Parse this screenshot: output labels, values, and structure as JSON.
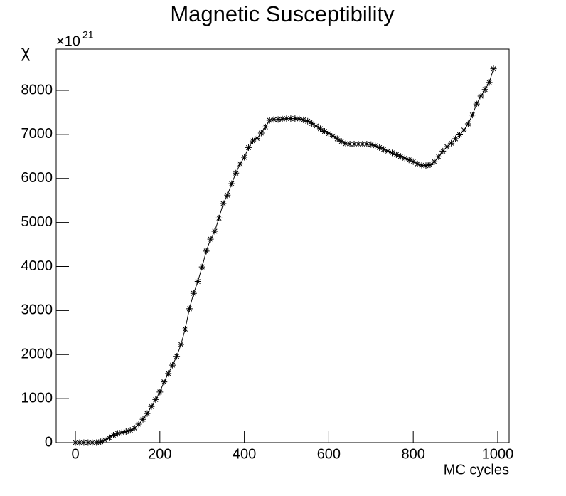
{
  "chart_data": {
    "type": "scatter-line",
    "title": "Magnetic Susceptibility",
    "x_label": "MC cycles",
    "y_label": "χ",
    "y_multiplier": "×10",
    "y_multiplier_exponent": "21",
    "color": "#000000",
    "x": [
      0,
      10,
      20,
      30,
      40,
      50,
      60,
      70,
      80,
      90,
      100,
      110,
      120,
      130,
      140,
      150,
      160,
      170,
      180,
      190,
      200,
      210,
      220,
      230,
      240,
      250,
      260,
      270,
      280,
      290,
      300,
      310,
      320,
      330,
      340,
      350,
      360,
      370,
      380,
      390,
      400,
      410,
      420,
      430,
      440,
      450,
      460,
      470,
      480,
      490,
      500,
      510,
      520,
      530,
      540,
      550,
      560,
      570,
      580,
      590,
      600,
      610,
      620,
      630,
      640,
      650,
      660,
      670,
      680,
      690,
      700,
      710,
      720,
      730,
      740,
      750,
      760,
      770,
      780,
      790,
      800,
      810,
      820,
      830,
      840,
      850,
      860,
      870,
      880,
      890,
      900,
      910,
      920,
      930,
      940,
      950,
      960,
      970,
      980,
      990
    ],
    "values": [
      0,
      0,
      0,
      0,
      0,
      0,
      20,
      60,
      110,
      170,
      210,
      230,
      250,
      280,
      330,
      420,
      530,
      660,
      820,
      980,
      1150,
      1380,
      1570,
      1760,
      1960,
      2230,
      2580,
      3040,
      3390,
      3660,
      3990,
      4350,
      4620,
      4800,
      5100,
      5430,
      5620,
      5880,
      6120,
      6330,
      6480,
      6700,
      6850,
      6910,
      7030,
      7170,
      7320,
      7340,
      7340,
      7350,
      7360,
      7360,
      7360,
      7350,
      7330,
      7300,
      7250,
      7190,
      7130,
      7070,
      7020,
      6960,
      6900,
      6840,
      6790,
      6780,
      6780,
      6780,
      6780,
      6780,
      6770,
      6740,
      6700,
      6660,
      6620,
      6580,
      6540,
      6500,
      6460,
      6420,
      6380,
      6330,
      6300,
      6290,
      6310,
      6380,
      6490,
      6620,
      6720,
      6800,
      6900,
      6990,
      7100,
      7240,
      7440,
      7690,
      7870,
      8020,
      8180,
      8490
    ],
    "xlim": [
      -45.5,
      1027
    ],
    "ylim": [
      0,
      8937
    ],
    "xticks": [
      0,
      200,
      400,
      600,
      800,
      1000
    ],
    "yticks": [
      0,
      1000,
      2000,
      3000,
      4000,
      5000,
      6000,
      7000,
      8000
    ]
  }
}
